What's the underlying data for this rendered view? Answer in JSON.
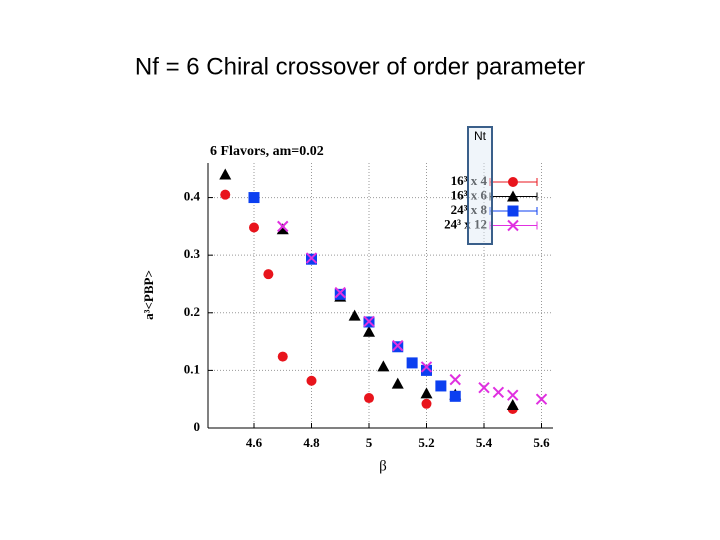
{
  "slide": {
    "title": "Nf = 6 Chiral crossover of order parameter"
  },
  "chart_data": {
    "type": "scatter",
    "title": "6 Flavors, am=0.02",
    "x_label": "β",
    "y_label": "a³<PBP>",
    "annotation": "Nt",
    "xlim": [
      4.44,
      5.64
    ],
    "ylim": [
      0,
      0.46
    ],
    "xticks": [
      4.6,
      4.8,
      5,
      5.2,
      5.4,
      5.6
    ],
    "yticks": [
      0,
      0.1,
      0.2,
      0.3,
      0.4
    ],
    "grid": true,
    "legend": "upper right",
    "series": [
      {
        "name": "16³ x 4",
        "color": "#e8141c",
        "marker": "circle",
        "x": [
          4.5,
          4.6,
          4.65,
          4.7,
          4.8,
          5.0,
          5.2,
          5.5
        ],
        "values": [
          0.405,
          0.348,
          0.267,
          0.124,
          0.082,
          0.052,
          0.042,
          0.033
        ]
      },
      {
        "name": "16³ x 6",
        "color": "#000000",
        "marker": "triangle",
        "x": [
          4.5,
          4.7,
          4.9,
          4.95,
          5.0,
          5.05,
          5.1,
          5.2,
          5.3,
          5.5
        ],
        "values": [
          0.44,
          0.345,
          0.228,
          0.195,
          0.167,
          0.107,
          0.077,
          0.06,
          0.058,
          0.04
        ]
      },
      {
        "name": "24³ x 8",
        "color": "#0b3ff0",
        "marker": "square",
        "x": [
          4.6,
          4.8,
          4.9,
          5.0,
          5.1,
          5.15,
          5.2,
          5.25,
          5.3
        ],
        "values": [
          0.4,
          0.293,
          0.232,
          0.184,
          0.141,
          0.113,
          0.1,
          0.073,
          0.055
        ]
      },
      {
        "name": "24³ x 12",
        "color": "#e030e0",
        "marker": "cross",
        "x": [
          4.7,
          4.8,
          4.9,
          5.0,
          5.1,
          5.2,
          5.3,
          5.4,
          5.45,
          5.5,
          5.6
        ],
        "values": [
          0.35,
          0.295,
          0.235,
          0.185,
          0.143,
          0.106,
          0.084,
          0.07,
          0.062,
          0.057,
          0.05
        ]
      }
    ]
  }
}
